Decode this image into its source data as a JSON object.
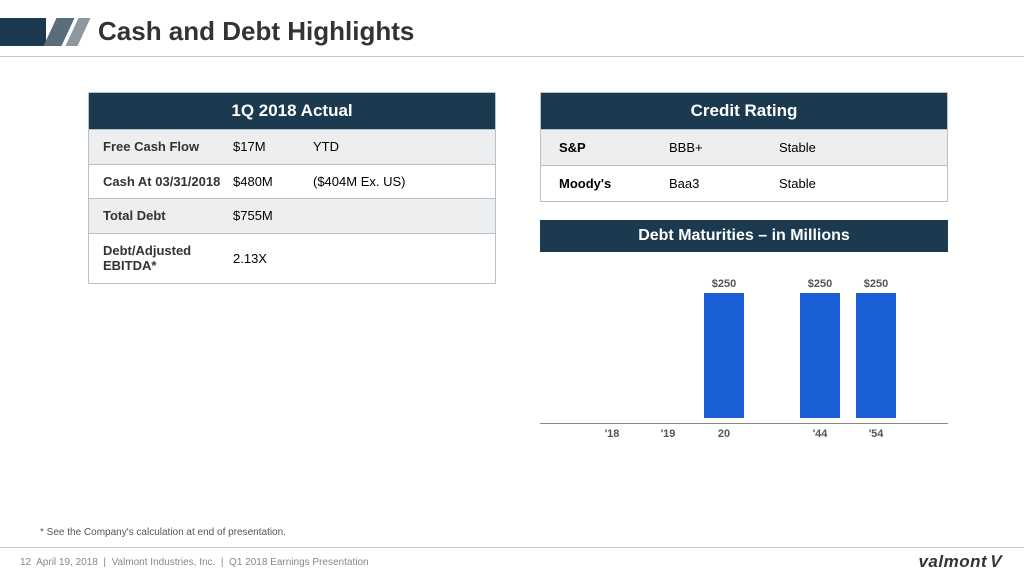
{
  "title": "Cash and Debt Highlights",
  "table1": {
    "header": "1Q 2018 Actual",
    "rows": [
      {
        "label": "Free Cash Flow",
        "value": "$17M",
        "extra": "YTD",
        "shaded": true
      },
      {
        "label": "Cash At 03/31/2018",
        "value": "$480M",
        "extra": "($404M Ex. US)",
        "shaded": false
      },
      {
        "label": "Total Debt",
        "value": "$755M",
        "extra": "",
        "shaded": true
      },
      {
        "label": "Debt/Adjusted EBITDA*",
        "value": "2.13X",
        "extra": "",
        "shaded": false
      }
    ]
  },
  "table2": {
    "header": "Credit Rating",
    "rows": [
      {
        "agency": "S&P",
        "rating": "BBB+",
        "outlook": "Stable",
        "shaded": true
      },
      {
        "agency": "Moody's",
        "rating": "Baa3",
        "outlook": "Stable",
        "shaded": false
      }
    ]
  },
  "chart": {
    "title": "Debt Maturities – in Millions",
    "type": "bar",
    "bar_color": "#1a5fd6",
    "max_value": 260,
    "categories": [
      "'18",
      "'19",
      "20",
      "'44",
      "'54"
    ],
    "values": [
      0,
      0,
      250,
      250,
      250
    ],
    "value_labels": [
      "",
      "",
      "$250",
      "$250",
      "$250"
    ],
    "gaps_after": [
      0,
      0,
      40,
      0,
      0
    ]
  },
  "footnote": "* See the Company's calculation at end of presentation.",
  "footer": {
    "page": "12",
    "date": "April 19, 2018",
    "company": "Valmont Industries, Inc.",
    "deck": "Q1 2018 Earnings Presentation"
  },
  "logo_text": "valmont"
}
